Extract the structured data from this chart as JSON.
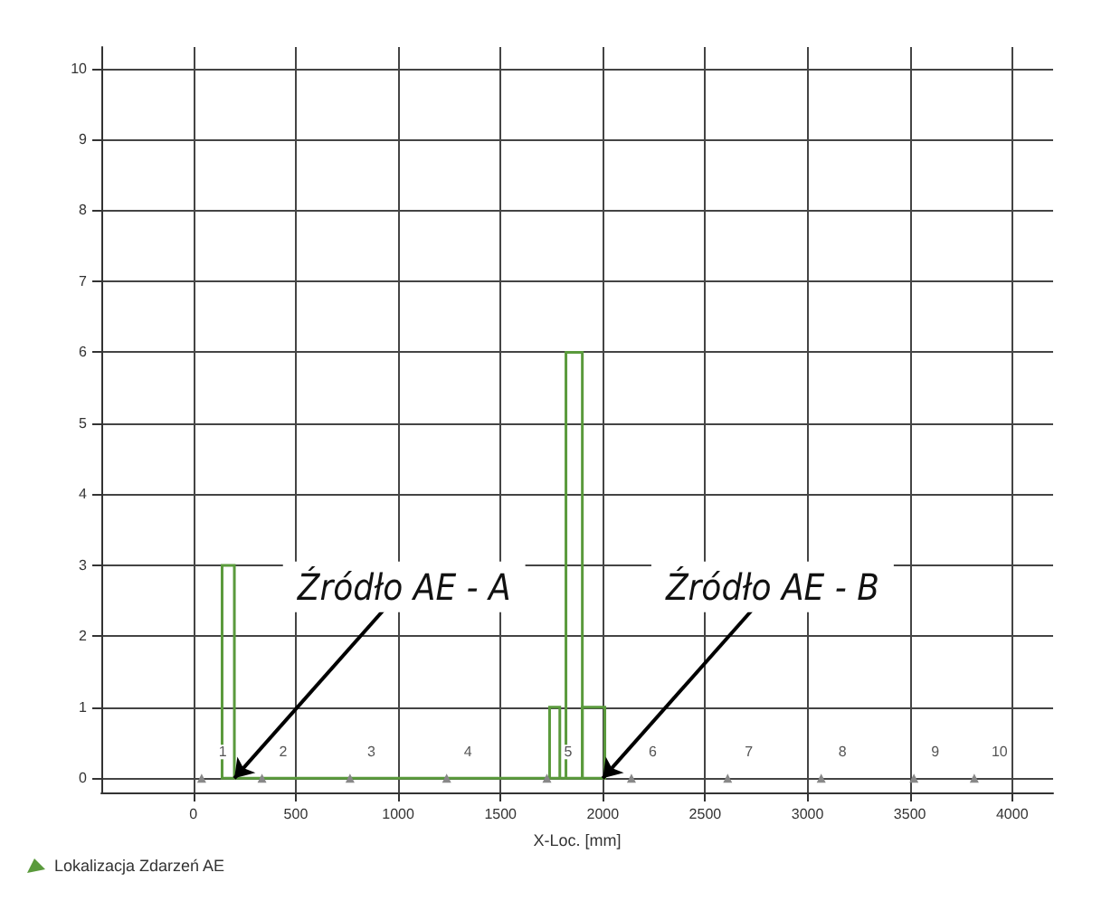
{
  "chart_data": {
    "type": "histogram",
    "xlabel": "X-Loc. [mm]",
    "bins": [
      140,
      200,
      1740,
      1790,
      1820,
      1900,
      2010
    ],
    "series": [
      {
        "name": "Lokalizacja Zdarzeń AE",
        "color": "#5a9a3c",
        "values": [
          3,
          0,
          1,
          0,
          6,
          1
        ]
      }
    ],
    "xlim": [
      -450,
      4200
    ],
    "xticks": [
      0,
      500,
      1000,
      1500,
      2000,
      2500,
      3000,
      3500,
      4000
    ],
    "ylim": [
      -0.2,
      10.3
    ],
    "yticks": [
      0,
      1,
      2,
      3,
      4,
      5,
      6,
      7,
      8,
      9,
      10
    ],
    "grid": true,
    "legend": "bottom left",
    "annotations": [
      {
        "text": "Źródło AE - A",
        "x": 200,
        "y": 0
      },
      {
        "text": "Źródło AE - B",
        "x": 2000,
        "y": 0
      },
      {
        "text": "1",
        "x": 40,
        "y": 0
      },
      {
        "text": "2",
        "x": 335,
        "y": 0
      },
      {
        "text": "3",
        "x": 765,
        "y": 0
      },
      {
        "text": "4",
        "x": 1237,
        "y": 0
      },
      {
        "text": "5",
        "x": 1727,
        "y": 0
      },
      {
        "text": "6",
        "x": 2140,
        "y": 0
      },
      {
        "text": "7",
        "x": 2610,
        "y": 0
      },
      {
        "text": "8",
        "x": 3067,
        "y": 0
      },
      {
        "text": "9",
        "x": 3520,
        "y": 0
      },
      {
        "text": "10",
        "x": 3815,
        "y": 0
      }
    ]
  }
}
